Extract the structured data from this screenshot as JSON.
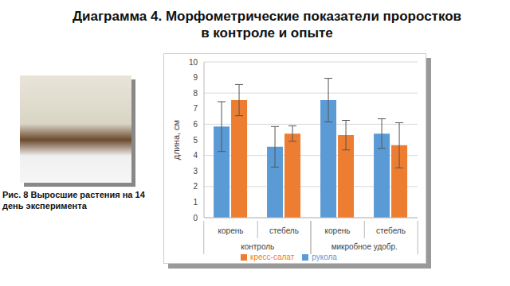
{
  "chart_data": {
    "type": "bar",
    "title": "Диаграмма 4. Морфометрические показатели проростков в контроле и опыте",
    "caption": "Рис. 8 Выросшие растения на 14 день эксперимента",
    "y_label": "длина, см",
    "categories": [
      "корень",
      "стебель",
      "корень",
      "стебель"
    ],
    "group_categories": [
      "контроль",
      "контроль",
      "микробное удобр.",
      "микробное удобр."
    ],
    "series": [
      {
        "name": "рукола",
        "color": "#5b9bd5",
        "values": [
          5.85,
          4.55,
          7.55,
          5.4
        ],
        "errors": [
          1.6,
          1.3,
          1.4,
          0.95
        ]
      },
      {
        "name": "кресс-салат",
        "color": "#ed7d31",
        "values": [
          7.55,
          5.4,
          5.3,
          4.65
        ],
        "errors": [
          1.0,
          0.5,
          0.95,
          1.45
        ]
      }
    ],
    "ylim": [
      0,
      10
    ],
    "yticks": [
      0,
      1,
      2,
      3,
      4,
      5,
      6,
      7,
      8,
      9,
      10
    ],
    "grid": true,
    "legend": "bottom"
  }
}
